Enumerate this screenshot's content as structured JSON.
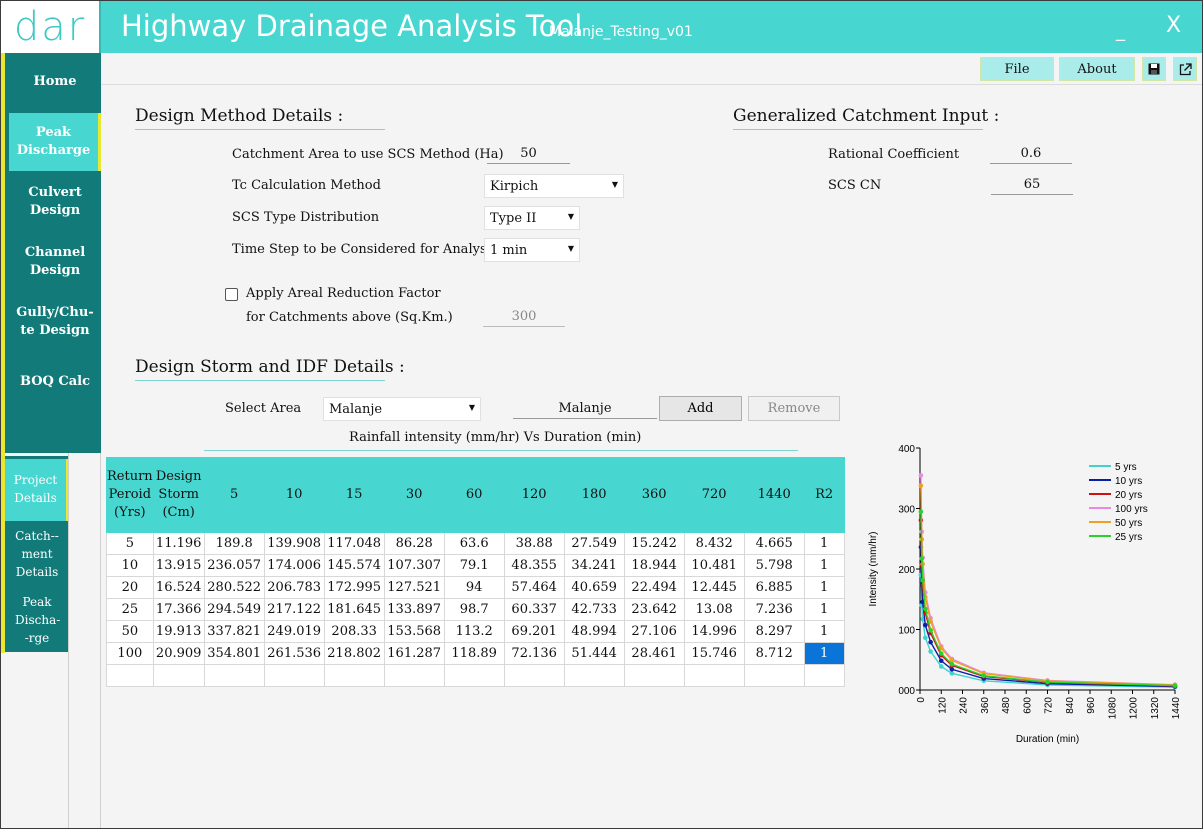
{
  "app": {
    "logo": "dar",
    "title": "Highway Drainage Analysis Tool",
    "project": "Malanje_Testing_v01",
    "minimize": "_",
    "close": "X"
  },
  "sidebar": {
    "items": [
      {
        "label": "Home"
      },
      {
        "label": "Peak Discharge"
      },
      {
        "label": "Culvert Design"
      },
      {
        "label": "Channel Design"
      },
      {
        "label": "Gully/Chu-te Design"
      },
      {
        "label": "BOQ Calc"
      }
    ]
  },
  "subsidebar": {
    "items": [
      {
        "label": "Project Details"
      },
      {
        "label": "Catch--ment Details"
      },
      {
        "label": "Peak Discha--rge"
      }
    ]
  },
  "toolbar": {
    "file": "File",
    "about": "About",
    "save_icon": "save-icon",
    "export_icon": "external-link-icon"
  },
  "design_method": {
    "title": "Design Method Details :",
    "catchment_area_label": "Catchment Area to use SCS Method (Ha)",
    "catchment_area_value": "50",
    "tc_label": "Tc Calculation Method",
    "tc_value": "Kirpich",
    "scs_type_label": "SCS Type Distribution",
    "scs_type_value": "Type II",
    "timestep_label": "Time Step to be Considered for Analysis",
    "timestep_value": "1 min",
    "arf_label_1": "Apply Areal Reduction Factor",
    "arf_label_2": "for Catchments above (Sq.Km.)",
    "arf_checked": false,
    "arf_value": "300"
  },
  "generalized": {
    "title": "Generalized Catchment Input :",
    "rational_label": "Rational Coefficient",
    "rational_value": "0.6",
    "cn_label": "SCS CN",
    "cn_value": "65"
  },
  "storm": {
    "title": "Design Storm and IDF Details :",
    "select_area_label": "Select Area",
    "select_area_value": "Malanje",
    "area_name_value": "Malanje",
    "add": "Add",
    "remove": "Remove",
    "table_caption": "Rainfall intensity (mm/hr) Vs Duration (min)"
  },
  "table": {
    "headers": [
      "Return Peroid (Yrs)",
      "Design Storm (Cm)",
      "5",
      "10",
      "15",
      "30",
      "60",
      "120",
      "180",
      "360",
      "720",
      "1440",
      "R2"
    ],
    "rows": [
      [
        "5",
        "11.196",
        "189.8",
        "139.908",
        "117.048",
        "86.28",
        "63.6",
        "38.88",
        "27.549",
        "15.242",
        "8.432",
        "4.665",
        "1"
      ],
      [
        "10",
        "13.915",
        "236.057",
        "174.006",
        "145.574",
        "107.307",
        "79.1",
        "48.355",
        "34.241",
        "18.944",
        "10.481",
        "5.798",
        "1"
      ],
      [
        "20",
        "16.524",
        "280.522",
        "206.783",
        "172.995",
        "127.521",
        "94",
        "57.464",
        "40.659",
        "22.494",
        "12.445",
        "6.885",
        "1"
      ],
      [
        "25",
        "17.366",
        "294.549",
        "217.122",
        "181.645",
        "133.897",
        "98.7",
        "60.337",
        "42.733",
        "23.642",
        "13.08",
        "7.236",
        "1"
      ],
      [
        "50",
        "19.913",
        "337.821",
        "249.019",
        "208.33",
        "153.568",
        "113.2",
        "69.201",
        "48.994",
        "27.106",
        "14.996",
        "8.297",
        "1"
      ],
      [
        "100",
        "20.909",
        "354.801",
        "261.536",
        "218.802",
        "161.287",
        "118.89",
        "72.136",
        "51.444",
        "28.461",
        "15.746",
        "8.712",
        "1"
      ]
    ]
  },
  "chart_data": {
    "type": "line",
    "xlabel": "Duration (min)",
    "ylabel": "Intensity (mm/hr)",
    "xlim": [
      0,
      1440
    ],
    "ylim": [
      0,
      400
    ],
    "xticks": [
      0,
      120,
      240,
      360,
      480,
      600,
      720,
      840,
      960,
      1080,
      1200,
      1320,
      1440
    ],
    "yticks": [
      "000",
      "100",
      "200",
      "300",
      "400"
    ],
    "ytick_values": [
      0,
      100,
      200,
      300,
      400
    ],
    "legend": "top-right",
    "x": [
      5,
      10,
      15,
      30,
      60,
      120,
      180,
      360,
      720,
      1440
    ],
    "series": [
      {
        "name": "5 yrs",
        "color": "#3fd3cf",
        "values": [
          189.8,
          139.908,
          117.048,
          86.28,
          63.6,
          38.88,
          27.549,
          15.242,
          8.432,
          4.665
        ]
      },
      {
        "name": "10 yrs",
        "color": "#0a1fa8",
        "values": [
          236.057,
          174.006,
          145.574,
          107.307,
          79.1,
          48.355,
          34.241,
          18.944,
          10.481,
          5.798
        ]
      },
      {
        "name": "20 yrs",
        "color": "#d01010",
        "values": [
          280.522,
          206.783,
          172.995,
          127.521,
          94,
          57.464,
          40.659,
          22.494,
          12.445,
          6.885
        ]
      },
      {
        "name": "100 yrs",
        "color": "#e98ae8",
        "values": [
          354.801,
          261.536,
          218.802,
          161.287,
          118.89,
          72.136,
          51.444,
          28.461,
          15.746,
          8.712
        ]
      },
      {
        "name": "50 yrs",
        "color": "#f0a020",
        "values": [
          337.821,
          249.019,
          208.33,
          153.568,
          113.2,
          69.201,
          48.994,
          27.106,
          14.996,
          8.297
        ]
      },
      {
        "name": "25 yrs",
        "color": "#2ad12a",
        "values": [
          294.549,
          217.122,
          181.645,
          133.897,
          98.7,
          60.337,
          42.733,
          23.642,
          13.08,
          7.236
        ]
      }
    ]
  }
}
